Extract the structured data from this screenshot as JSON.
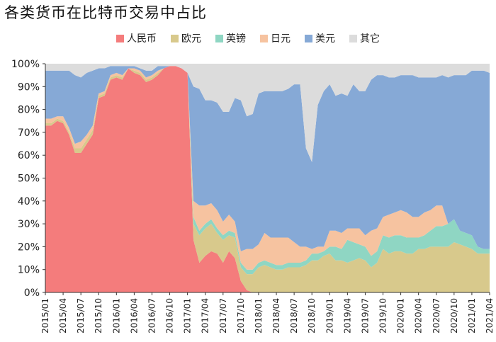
{
  "colors": {
    "人民币": "#f47c7c",
    "欧元": "#d8c98c",
    "英镑": "#8fd6c3",
    "日元": "#f6c3a0",
    "美元": "#86a9d6",
    "其它": "#dcdcdc"
  },
  "chart_data": {
    "type": "area",
    "title": "各类货币在比特币交易中占比",
    "legend_placement": "top",
    "ylim": [
      0,
      1
    ],
    "y_ticks": [
      "0%",
      "10%",
      "20%",
      "30%",
      "40%",
      "50%",
      "60%",
      "70%",
      "80%",
      "90%",
      "100%"
    ],
    "x_tick_labels": [
      "2015/01",
      "2015/04",
      "2015/07",
      "2015/10",
      "2016/01",
      "2016/04",
      "2016/07",
      "2016/10",
      "2017/01",
      "2017/04",
      "2017/07",
      "2017/10",
      "2018/01",
      "2018/04",
      "2018/07",
      "2018/10",
      "2019/01",
      "2019/04",
      "2019/07",
      "2019/10",
      "2020/01",
      "2020/04",
      "2020/07",
      "2020/10",
      "2021/01",
      "2021/04"
    ],
    "x": [
      "2015/01",
      "2015/02",
      "2015/03",
      "2015/04",
      "2015/05",
      "2015/06",
      "2015/07",
      "2015/08",
      "2015/09",
      "2015/10",
      "2015/11",
      "2015/12",
      "2016/01",
      "2016/02",
      "2016/03",
      "2016/04",
      "2016/05",
      "2016/06",
      "2016/07",
      "2016/08",
      "2016/09",
      "2016/10",
      "2016/11",
      "2016/12",
      "2017/01",
      "2017/02",
      "2017/03",
      "2017/04",
      "2017/05",
      "2017/06",
      "2017/07",
      "2017/08",
      "2017/09",
      "2017/10",
      "2017/11",
      "2017/12",
      "2018/01",
      "2018/02",
      "2018/03",
      "2018/04",
      "2018/05",
      "2018/06",
      "2018/07",
      "2018/08",
      "2018/09",
      "2018/10",
      "2018/11",
      "2018/12",
      "2019/01",
      "2019/02",
      "2019/03",
      "2019/04",
      "2019/05",
      "2019/06",
      "2019/07",
      "2019/08",
      "2019/09",
      "2019/10",
      "2019/11",
      "2019/12",
      "2020/01",
      "2020/02",
      "2020/03",
      "2020/04",
      "2020/05",
      "2020/06",
      "2020/07",
      "2020/08",
      "2020/09",
      "2020/10",
      "2020/11",
      "2020/12",
      "2021/01",
      "2021/02",
      "2021/03",
      "2021/04"
    ],
    "series": [
      {
        "name": "人民币",
        "values": [
          0.73,
          0.73,
          0.75,
          0.74,
          0.69,
          0.61,
          0.61,
          0.65,
          0.69,
          0.85,
          0.86,
          0.93,
          0.94,
          0.93,
          0.98,
          0.96,
          0.95,
          0.92,
          0.93,
          0.95,
          0.98,
          0.99,
          0.99,
          0.98,
          0.96,
          0.23,
          0.13,
          0.16,
          0.18,
          0.17,
          0.13,
          0.18,
          0.15,
          0.05,
          0.01,
          0,
          0,
          0,
          0,
          0,
          0,
          0,
          0,
          0,
          0,
          0,
          0,
          0,
          0,
          0,
          0,
          0,
          0,
          0,
          0,
          0,
          0,
          0,
          0,
          0,
          0,
          0,
          0,
          0,
          0,
          0,
          0,
          0,
          0,
          0,
          0,
          0,
          0,
          0,
          0,
          0
        ]
      },
      {
        "name": "欧元",
        "values": [
          0.01,
          0.01,
          0.01,
          0.01,
          0.01,
          0.02,
          0.02,
          0.02,
          0.02,
          0.01,
          0.01,
          0.01,
          0.01,
          0.01,
          0,
          0.01,
          0.01,
          0.01,
          0.01,
          0.01,
          0,
          0,
          0,
          0,
          0,
          0.07,
          0.12,
          0.12,
          0.12,
          0.09,
          0.1,
          0.07,
          0.09,
          0.06,
          0.07,
          0.08,
          0.11,
          0.12,
          0.11,
          0.1,
          0.1,
          0.11,
          0.11,
          0.11,
          0.12,
          0.14,
          0.14,
          0.16,
          0.17,
          0.14,
          0.14,
          0.13,
          0.14,
          0.15,
          0.14,
          0.11,
          0.13,
          0.19,
          0.17,
          0.18,
          0.18,
          0.17,
          0.17,
          0.19,
          0.19,
          0.2,
          0.2,
          0.2,
          0.2,
          0.22,
          0.21,
          0.2,
          0.19,
          0.17,
          0.17,
          0.17
        ]
      },
      {
        "name": "英镑",
        "values": [
          0,
          0,
          0,
          0,
          0,
          0,
          0,
          0,
          0,
          0,
          0,
          0,
          0,
          0,
          0,
          0,
          0,
          0,
          0,
          0,
          0,
          0,
          0,
          0,
          0,
          0.03,
          0.02,
          0.02,
          0.02,
          0.02,
          0.02,
          0.02,
          0.02,
          0.02,
          0.02,
          0.02,
          0.02,
          0.02,
          0.02,
          0.02,
          0.02,
          0.02,
          0.02,
          0.02,
          0.02,
          0.03,
          0.03,
          0.02,
          0.03,
          0.06,
          0.05,
          0.1,
          0.08,
          0.06,
          0.06,
          0.05,
          0.05,
          0.06,
          0.07,
          0.07,
          0.07,
          0.07,
          0.07,
          0.05,
          0.06,
          0.07,
          0.09,
          0.09,
          0.1,
          0.1,
          0.06,
          0.06,
          0.06,
          0.03,
          0.02,
          0.02
        ]
      },
      {
        "name": "日元",
        "values": [
          0.02,
          0.02,
          0.01,
          0.02,
          0.02,
          0.02,
          0.03,
          0.02,
          0.02,
          0.01,
          0.01,
          0.01,
          0.01,
          0.01,
          0,
          0.01,
          0.01,
          0.01,
          0.01,
          0.01,
          0,
          0,
          0,
          0,
          0,
          0.07,
          0.11,
          0.08,
          0.07,
          0.08,
          0.06,
          0.07,
          0.05,
          0.05,
          0.09,
          0.09,
          0.08,
          0.12,
          0.11,
          0.12,
          0.12,
          0.11,
          0.09,
          0.07,
          0.06,
          0.02,
          0.03,
          0.02,
          0.07,
          0.07,
          0.07,
          0.05,
          0.06,
          0.07,
          0.05,
          0.11,
          0.1,
          0.08,
          0.1,
          0.1,
          0.11,
          0.11,
          0.09,
          0.09,
          0.1,
          0.09,
          0.09,
          0.09,
          0,
          0,
          0,
          0,
          0,
          0,
          0,
          0
        ]
      },
      {
        "name": "美元",
        "values": [
          0.21,
          0.21,
          0.2,
          0.2,
          0.25,
          0.3,
          0.28,
          0.27,
          0.24,
          0.11,
          0.1,
          0.04,
          0.03,
          0.04,
          0.01,
          0.01,
          0.01,
          0.03,
          0.02,
          0.02,
          0.01,
          0,
          0,
          0,
          0,
          0.5,
          0.51,
          0.46,
          0.45,
          0.47,
          0.48,
          0.45,
          0.54,
          0.66,
          0.58,
          0.59,
          0.66,
          0.62,
          0.64,
          0.64,
          0.64,
          0.65,
          0.69,
          0.71,
          0.43,
          0.38,
          0.62,
          0.68,
          0.64,
          0.59,
          0.61,
          0.58,
          0.63,
          0.6,
          0.63,
          0.66,
          0.67,
          0.62,
          0.6,
          0.59,
          0.59,
          0.6,
          0.62,
          0.61,
          0.59,
          0.58,
          0.56,
          0.57,
          0.64,
          0.63,
          0.68,
          0.69,
          0.72,
          0.77,
          0.78,
          0.77
        ]
      },
      {
        "name": "其它",
        "values": [
          0.03,
          0.03,
          0.03,
          0.03,
          0.03,
          0.05,
          0.06,
          0.04,
          0.03,
          0.02,
          0.02,
          0.01,
          0.01,
          0.01,
          0.01,
          0.01,
          0.02,
          0.03,
          0.03,
          0.01,
          0.01,
          0.01,
          0.01,
          0.02,
          0.04,
          0.1,
          0.11,
          0.16,
          0.16,
          0.17,
          0.21,
          0.21,
          0.15,
          0.16,
          0.23,
          0.22,
          0.13,
          0.12,
          0.12,
          0.12,
          0.12,
          0.11,
          0.09,
          0.09,
          0.37,
          0.43,
          0.18,
          0.12,
          0.09,
          0.14,
          0.13,
          0.14,
          0.09,
          0.12,
          0.12,
          0.07,
          0.05,
          0.05,
          0.06,
          0.06,
          0.05,
          0.05,
          0.05,
          0.06,
          0.06,
          0.06,
          0.06,
          0.05,
          0.06,
          0.05,
          0.05,
          0.05,
          0.03,
          0.03,
          0.03,
          0.04
        ]
      }
    ]
  }
}
